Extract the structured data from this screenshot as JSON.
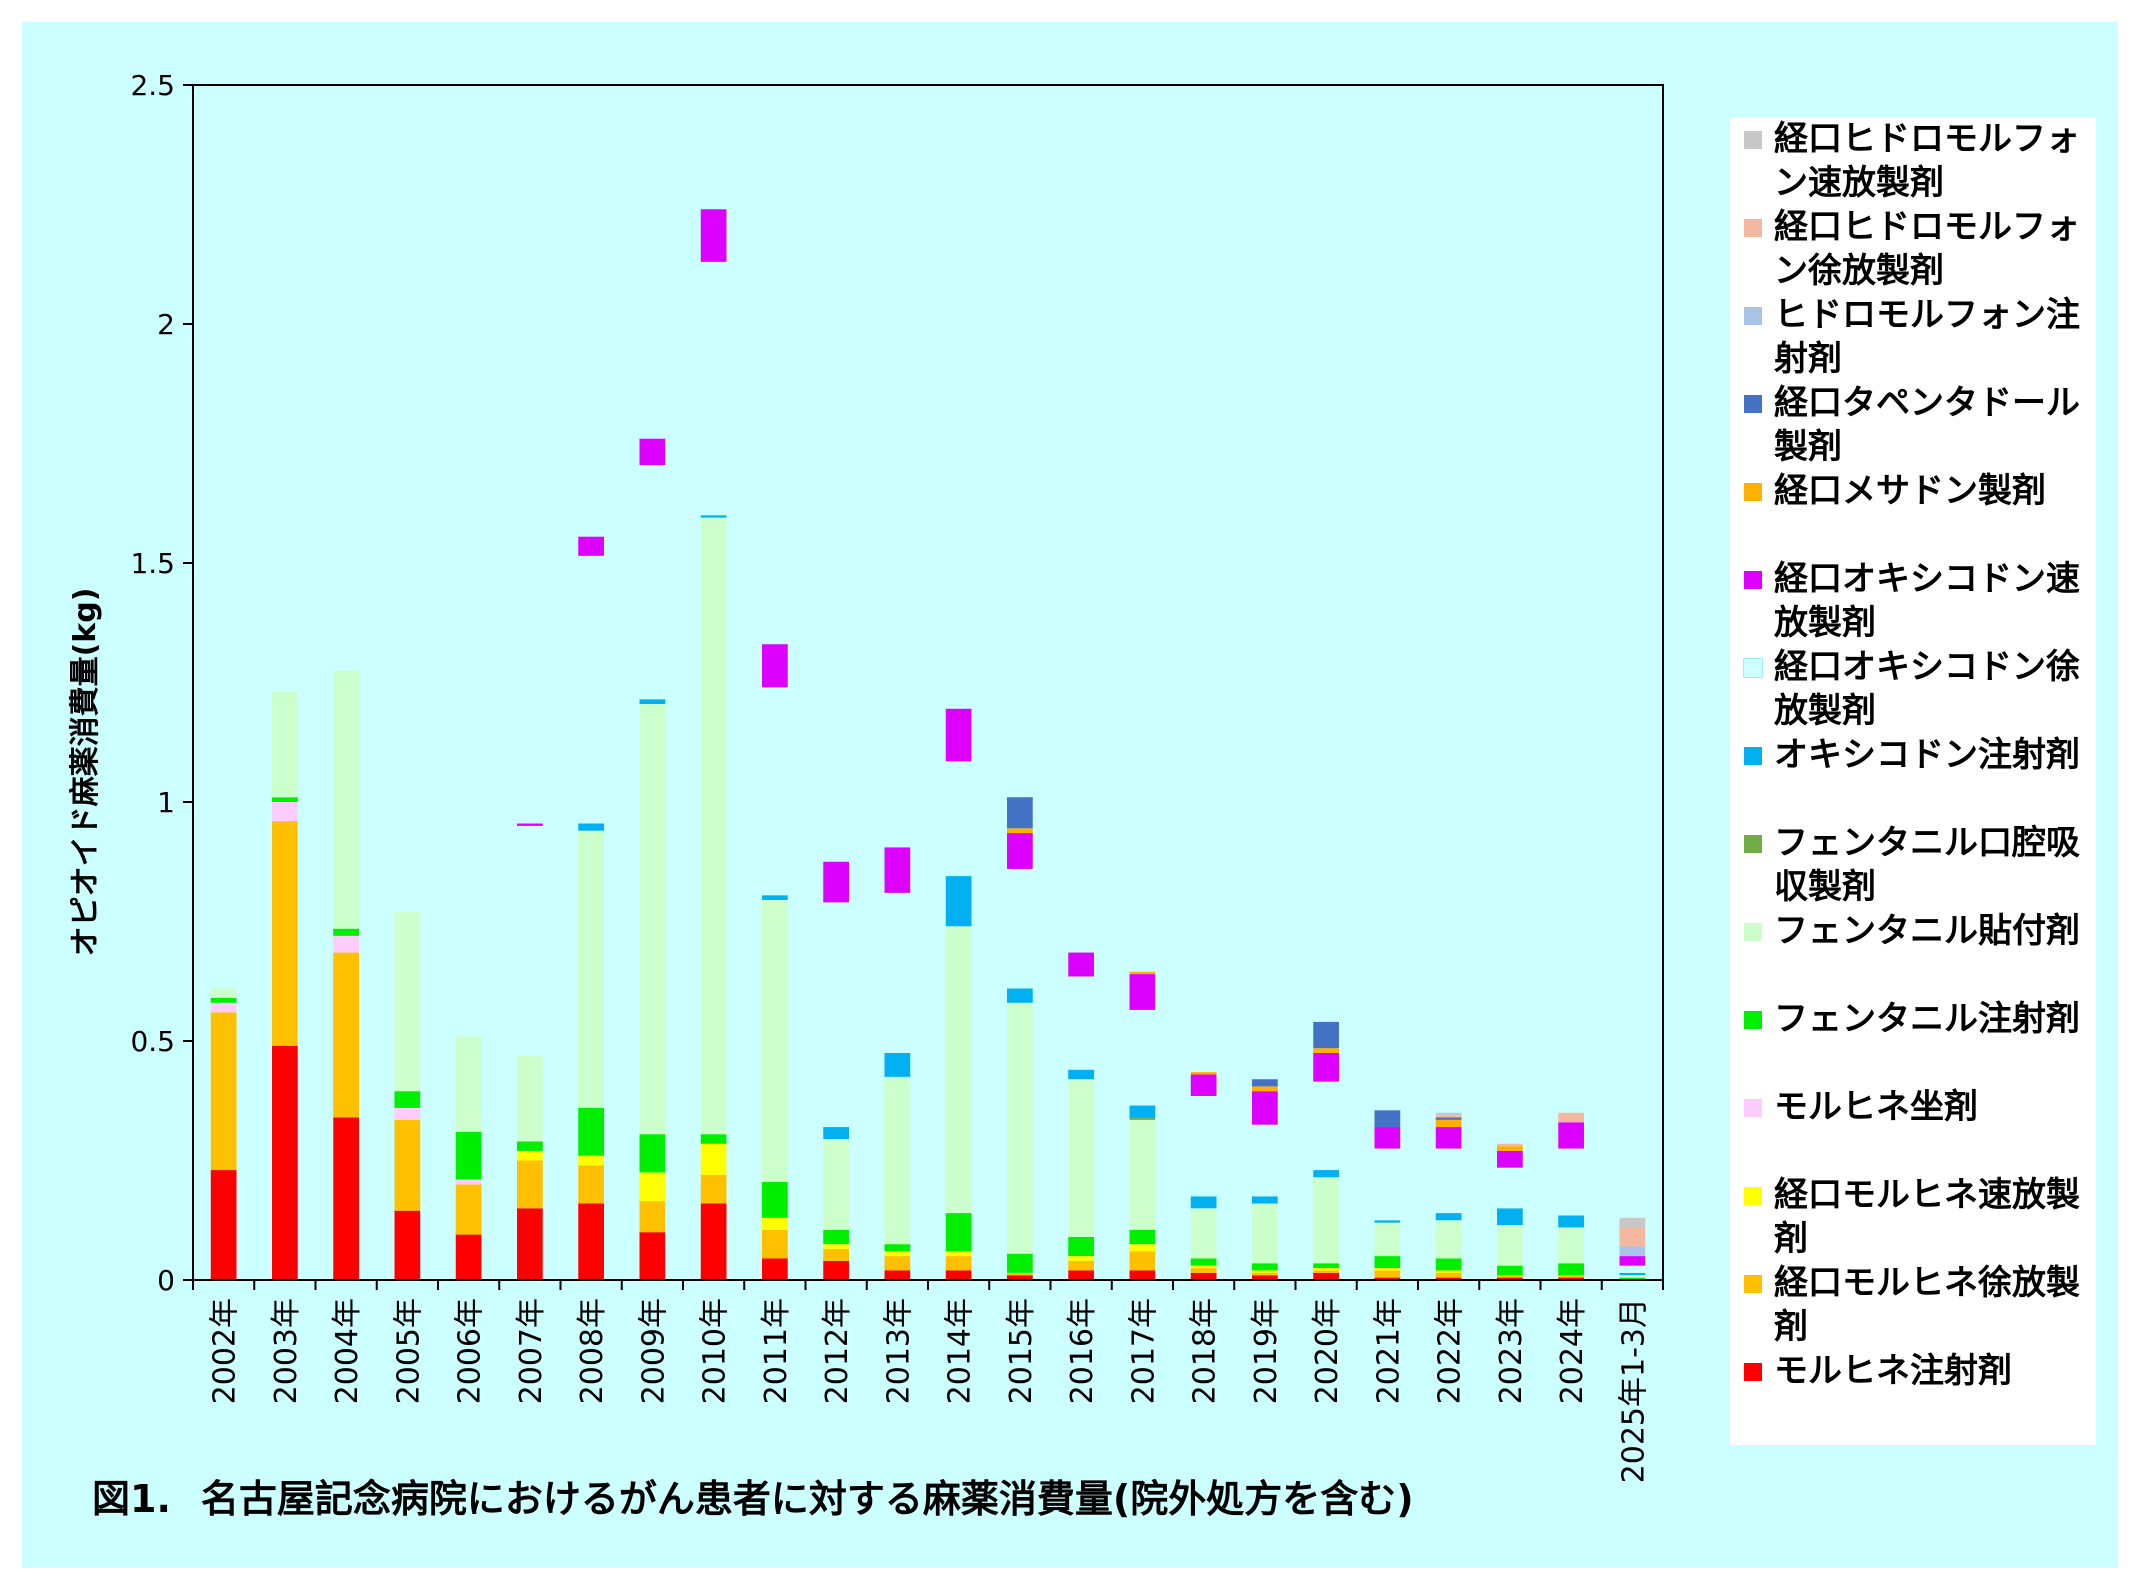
{
  "chart_data": {
    "type": "bar",
    "stacked": true,
    "ylabel": "オピオイド麻薬消費量(kg)",
    "xlabel": "",
    "ylim": [
      0,
      2.5
    ],
    "yticks": [
      "0",
      "0.5",
      "1",
      "1.5",
      "2",
      "2.5"
    ],
    "grid": false,
    "legend_position": "right",
    "categories": [
      "2002年",
      "2003年",
      "2004年",
      "2005年",
      "2006年",
      "2007年",
      "2008年",
      "2009年",
      "2010年",
      "2011年",
      "2012年",
      "2013年",
      "2014年",
      "2015年",
      "2016年",
      "2017年",
      "2018年",
      "2019年",
      "2020年",
      "2021年",
      "2022年",
      "2023年",
      "2024年",
      "2025年1-3月"
    ],
    "series": [
      {
        "name": "モルヒネ注射剤",
        "color": "#ff0000",
        "values": [
          0.23,
          0.49,
          0.34,
          0.145,
          0.095,
          0.15,
          0.16,
          0.1,
          0.16,
          0.045,
          0.04,
          0.02,
          0.02,
          0.01,
          0.02,
          0.02,
          0.015,
          0.01,
          0.015,
          0.005,
          0.005,
          0.005,
          0.005,
          0.0
        ]
      },
      {
        "name": "経口モルヒネ徐放製剤",
        "color": "#ffc000",
        "values": [
          0.33,
          0.47,
          0.345,
          0.19,
          0.105,
          0.1,
          0.08,
          0.065,
          0.06,
          0.06,
          0.025,
          0.03,
          0.03,
          0.005,
          0.02,
          0.04,
          0.01,
          0.005,
          0.005,
          0.015,
          0.01,
          0.005,
          0.005,
          0.0
        ]
      },
      {
        "name": "経口モルヒネ速放製剤",
        "color": "#ffff00",
        "values": [
          0.0,
          0.0,
          0.0,
          0.0,
          0.0,
          0.02,
          0.02,
          0.06,
          0.065,
          0.025,
          0.01,
          0.01,
          0.01,
          0.0,
          0.01,
          0.015,
          0.005,
          0.005,
          0.005,
          0.005,
          0.005,
          0.0,
          0.0,
          0.0
        ]
      },
      {
        "name": "モルヒネ坐剤",
        "color": "#ffccff",
        "values": [
          0.02,
          0.04,
          0.035,
          0.025,
          0.01,
          0.0,
          0.0,
          0.0,
          0.0,
          0.0,
          0.0,
          0.0,
          0.0,
          0.0,
          0.0,
          0.0,
          0.0,
          0.0,
          0.0,
          0.0,
          0.0,
          0.0,
          0.0,
          0.0
        ]
      },
      {
        "name": "フェンタニル注射剤",
        "color": "#00ee00",
        "values": [
          0.01,
          0.01,
          0.015,
          0.035,
          0.1,
          0.02,
          0.1,
          0.08,
          0.02,
          0.075,
          0.03,
          0.015,
          0.08,
          0.04,
          0.04,
          0.03,
          0.015,
          0.015,
          0.01,
          0.025,
          0.025,
          0.02,
          0.025,
          0.005
        ]
      },
      {
        "name": "フェンタニル貼付剤",
        "color": "#ccffcc",
        "values": [
          0.02,
          0.22,
          0.54,
          0.375,
          0.2,
          0.18,
          0.58,
          0.9,
          1.29,
          0.59,
          0.19,
          0.35,
          0.6,
          0.525,
          0.33,
          0.23,
          0.105,
          0.125,
          0.18,
          0.07,
          0.08,
          0.085,
          0.075,
          0.005
        ]
      },
      {
        "name": "フェンタニル口腔吸収製剤",
        "color": "#70ad47",
        "values": [
          0.0,
          0.0,
          0.0,
          0.0,
          0.0,
          0.0,
          0.0,
          0.0,
          0.0,
          0.0,
          0.0,
          0.0,
          0.0,
          0.0,
          0.0,
          0.005,
          0.0,
          0.0,
          0.0,
          0.0,
          0.0,
          0.0,
          0.0,
          0.0
        ]
      },
      {
        "name": "オキシコドン注射剤",
        "color": "#00b0f0",
        "values": [
          0.0,
          0.0,
          0.0,
          0.0,
          0.0,
          0.0,
          0.015,
          0.01,
          0.005,
          0.01,
          0.025,
          0.05,
          0.105,
          0.03,
          0.02,
          0.025,
          0.025,
          0.015,
          0.015,
          0.005,
          0.015,
          0.035,
          0.025,
          0.005
        ]
      },
      {
        "name": "経口オキシコドン徐放製剤",
        "color": "#ccffff",
        "values": [
          0.0,
          0.0,
          0.0,
          0.02,
          0.215,
          0.48,
          0.56,
          0.49,
          0.53,
          0.435,
          0.47,
          0.335,
          0.24,
          0.25,
          0.195,
          0.2,
          0.21,
          0.15,
          0.185,
          0.15,
          0.135,
          0.085,
          0.14,
          0.015
        ]
      },
      {
        "name": "経口オキシコドン速放製剤",
        "color": "#dd00ff",
        "values": [
          0.0,
          0.0,
          0.0,
          0.0,
          0.0,
          0.005,
          0.04,
          0.055,
          0.11,
          0.09,
          0.085,
          0.095,
          0.11,
          0.075,
          0.05,
          0.075,
          0.045,
          0.07,
          0.06,
          0.045,
          0.045,
          0.035,
          0.055,
          0.02
        ]
      },
      {
        "name": "経口メサドン製剤",
        "color": "#ffb000",
        "values": [
          0.0,
          0.0,
          0.0,
          0.0,
          0.0,
          0.0,
          0.0,
          0.0,
          0.0,
          0.0,
          0.0,
          0.0,
          0.0,
          0.01,
          0.0,
          0.005,
          0.005,
          0.01,
          0.01,
          0.0,
          0.015,
          0.01,
          0.0,
          0.0
        ]
      },
      {
        "name": "経口タペンタドール製剤",
        "color": "#4472c4",
        "values": [
          0.0,
          0.0,
          0.0,
          0.0,
          0.0,
          0.0,
          0.0,
          0.0,
          0.0,
          0.0,
          0.0,
          0.0,
          0.0,
          0.065,
          0.0,
          0.0,
          0.0,
          0.015,
          0.055,
          0.035,
          0.005,
          0.0,
          0.0,
          0.0
        ]
      },
      {
        "name": "ヒドロモルフォン注射剤",
        "color": "#a9c4e8",
        "values": [
          0.0,
          0.0,
          0.0,
          0.0,
          0.0,
          0.0,
          0.0,
          0.0,
          0.0,
          0.0,
          0.0,
          0.0,
          0.0,
          0.0,
          0.0,
          0.0,
          0.0,
          0.0,
          0.0,
          0.0,
          0.0,
          0.0,
          0.0,
          0.02
        ]
      },
      {
        "name": "経口ヒドロモルフォン徐放製剤",
        "color": "#f4b8a0",
        "values": [
          0.0,
          0.0,
          0.0,
          0.0,
          0.0,
          0.0,
          0.0,
          0.0,
          0.0,
          0.0,
          0.0,
          0.0,
          0.0,
          0.0,
          0.0,
          0.0,
          0.0,
          0.0,
          0.0,
          0.0,
          0.005,
          0.005,
          0.02,
          0.04
        ]
      },
      {
        "name": "経口ヒドロモルフォン速放製剤",
        "color": "#c8c8c8",
        "values": [
          0.0,
          0.0,
          0.0,
          0.0,
          0.0,
          0.0,
          0.0,
          0.0,
          0.0,
          0.0,
          0.0,
          0.0,
          0.0,
          0.0,
          0.0,
          0.0,
          0.0,
          0.0,
          0.0,
          0.0,
          0.005,
          0.0,
          0.0,
          0.02
        ]
      }
    ]
  },
  "legend_items": [
    {
      "label": "経口ヒドロモルフォン速放製剤",
      "color": "#c8c8c8"
    },
    {
      "label": "経口ヒドロモルフォン徐放製剤",
      "color": "#f4b8a0"
    },
    {
      "label": "ヒドロモルフォン注射剤",
      "color": "#a9c4e8"
    },
    {
      "label": "経口タペンタドール製剤",
      "color": "#4472c4"
    },
    {
      "label": "経口メサドン製剤",
      "color": "#ffb000"
    },
    {
      "label": "経口オキシコドン速放製剤",
      "color": "#dd00ff"
    },
    {
      "label": "経口オキシコドン徐放製剤",
      "color": "#ccffff"
    },
    {
      "label": "オキシコドン注射剤",
      "color": "#00b0f0"
    },
    {
      "label": "フェンタニル口腔吸収製剤",
      "color": "#70ad47"
    },
    {
      "label": "フェンタニル貼付剤",
      "color": "#ccffcc"
    },
    {
      "label": "フェンタニル注射剤",
      "color": "#00ee00"
    },
    {
      "label": "モルヒネ坐剤",
      "color": "#ffccff"
    },
    {
      "label": "経口モルヒネ速放製剤",
      "color": "#ffff00"
    },
    {
      "label": "経口モルヒネ徐放製剤",
      "color": "#ffc000"
    },
    {
      "label": "モルヒネ注射剤",
      "color": "#ff0000"
    }
  ],
  "caption": {
    "number": "図1.",
    "text": "名古屋記念病院におけるがん患者に対する麻薬消費量(院外処方を含む)"
  }
}
